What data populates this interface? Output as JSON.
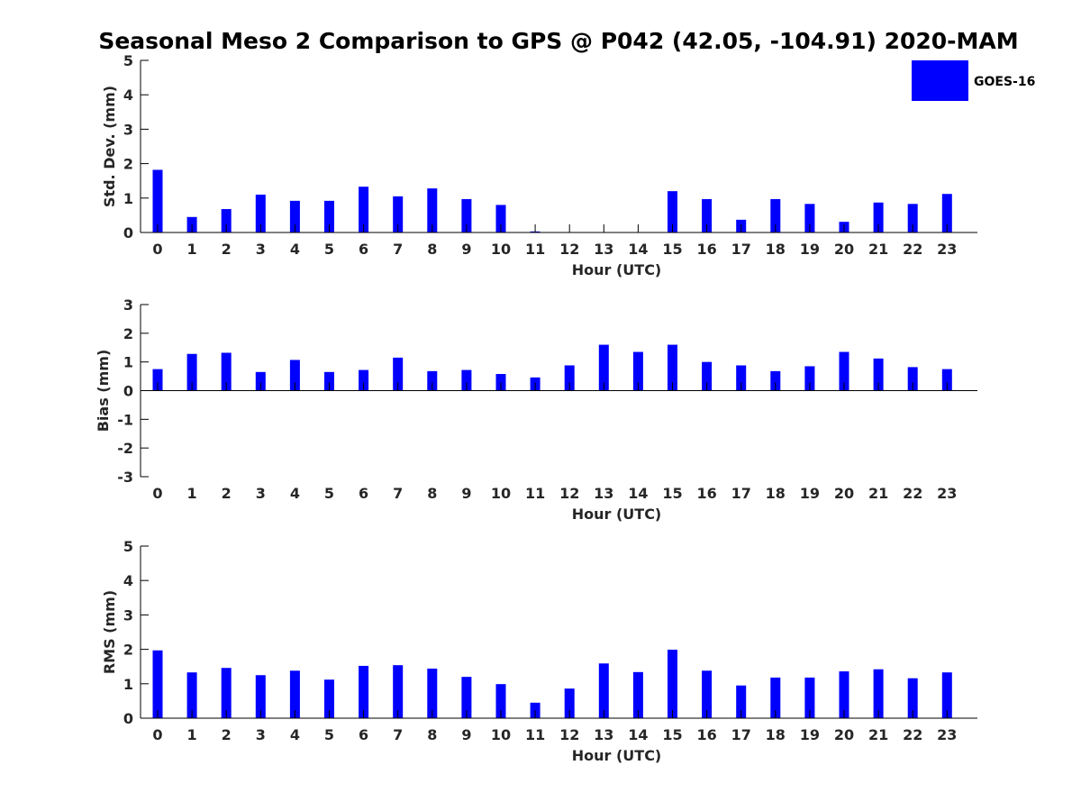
{
  "chart_data": [
    {
      "type": "bar",
      "title": "Seasonal Meso 2 Comparison to GPS @ P042 (42.05, -104.91) 2020-MAM",
      "xlabel": "Hour (UTC)",
      "ylabel": "Std. Dev. (mm)",
      "ylim": [
        0,
        5
      ],
      "yticks": [
        "0",
        "1",
        "2",
        "3",
        "4",
        "5"
      ],
      "categories": [
        "0",
        "1",
        "2",
        "3",
        "4",
        "5",
        "6",
        "7",
        "8",
        "9",
        "10",
        "11",
        "12",
        "13",
        "14",
        "15",
        "16",
        "17",
        "18",
        "19",
        "20",
        "21",
        "22",
        "23"
      ],
      "series": [
        {
          "name": "GOES-16",
          "color": "#0000ff",
          "values": [
            1.82,
            0.45,
            0.68,
            1.1,
            0.92,
            0.92,
            1.33,
            1.05,
            1.28,
            0.97,
            0.8,
            0.03,
            0,
            0,
            0,
            1.2,
            0.97,
            0.37,
            0.97,
            0.83,
            0.31,
            0.87,
            0.83,
            1.12
          ]
        }
      ],
      "grid": false,
      "legend": "top-right"
    },
    {
      "type": "bar",
      "xlabel": "Hour (UTC)",
      "ylabel": "Bias (mm)",
      "ylim": [
        -3,
        3
      ],
      "yticks": [
        "-3",
        "-2",
        "-1",
        "0",
        "1",
        "2",
        "3"
      ],
      "categories": [
        "0",
        "1",
        "2",
        "3",
        "4",
        "5",
        "6",
        "7",
        "8",
        "9",
        "10",
        "11",
        "12",
        "13",
        "14",
        "15",
        "16",
        "17",
        "18",
        "19",
        "20",
        "21",
        "22",
        "23"
      ],
      "series": [
        {
          "name": "GOES-16",
          "color": "#0000ff",
          "values": [
            0.75,
            1.28,
            1.32,
            0.65,
            1.07,
            0.65,
            0.72,
            1.15,
            0.68,
            0.72,
            0.58,
            0.46,
            0.88,
            1.6,
            1.35,
            1.6,
            1.0,
            0.88,
            0.68,
            0.85,
            1.35,
            1.12,
            0.82,
            0.75
          ]
        }
      ],
      "grid": false
    },
    {
      "type": "bar",
      "xlabel": "Hour (UTC)",
      "ylabel": "RMS (mm)",
      "ylim": [
        0,
        5
      ],
      "yticks": [
        "0",
        "1",
        "2",
        "3",
        "4",
        "5"
      ],
      "categories": [
        "0",
        "1",
        "2",
        "3",
        "4",
        "5",
        "6",
        "7",
        "8",
        "9",
        "10",
        "11",
        "12",
        "13",
        "14",
        "15",
        "16",
        "17",
        "18",
        "19",
        "20",
        "21",
        "22",
        "23"
      ],
      "series": [
        {
          "name": "GOES-16",
          "color": "#0000ff",
          "values": [
            1.97,
            1.33,
            1.46,
            1.25,
            1.38,
            1.12,
            1.52,
            1.54,
            1.44,
            1.2,
            0.99,
            0.45,
            0.86,
            1.59,
            1.34,
            1.99,
            1.38,
            0.95,
            1.18,
            1.18,
            1.36,
            1.42,
            1.16,
            1.33
          ]
        }
      ],
      "grid": false
    }
  ],
  "legend": {
    "label": "GOES-16",
    "color": "#0000ff"
  }
}
